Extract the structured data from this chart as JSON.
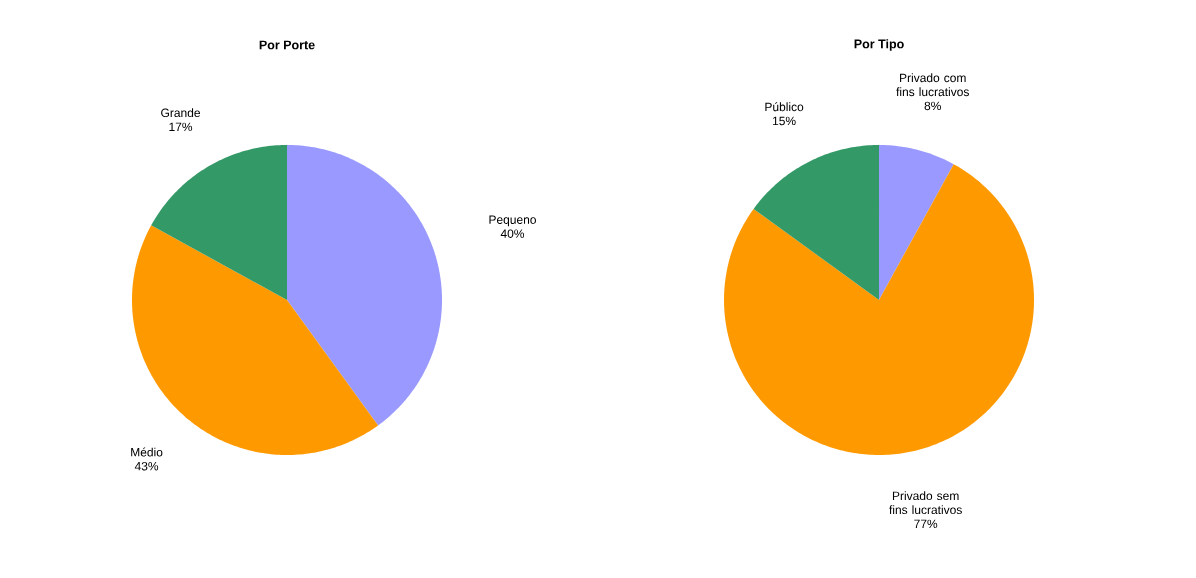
{
  "chart_data": [
    {
      "type": "pie",
      "title": "Por Porte",
      "categories": [
        "Pequeno",
        "Médio",
        "Grande"
      ],
      "values": [
        40,
        43,
        17
      ],
      "colors": [
        "#9999ff",
        "#ff9900",
        "#339966"
      ],
      "value_labels": [
        "40%",
        "43%",
        "17%"
      ]
    },
    {
      "type": "pie",
      "title": "Por Tipo",
      "categories": [
        "Privado com fins lucrativos",
        "Privado sem fins lucrativos",
        "Público"
      ],
      "values": [
        8,
        77,
        15
      ],
      "colors": [
        "#9999ff",
        "#ff9900",
        "#339966"
      ],
      "value_labels": [
        "8%",
        "77%",
        "15%"
      ]
    }
  ]
}
